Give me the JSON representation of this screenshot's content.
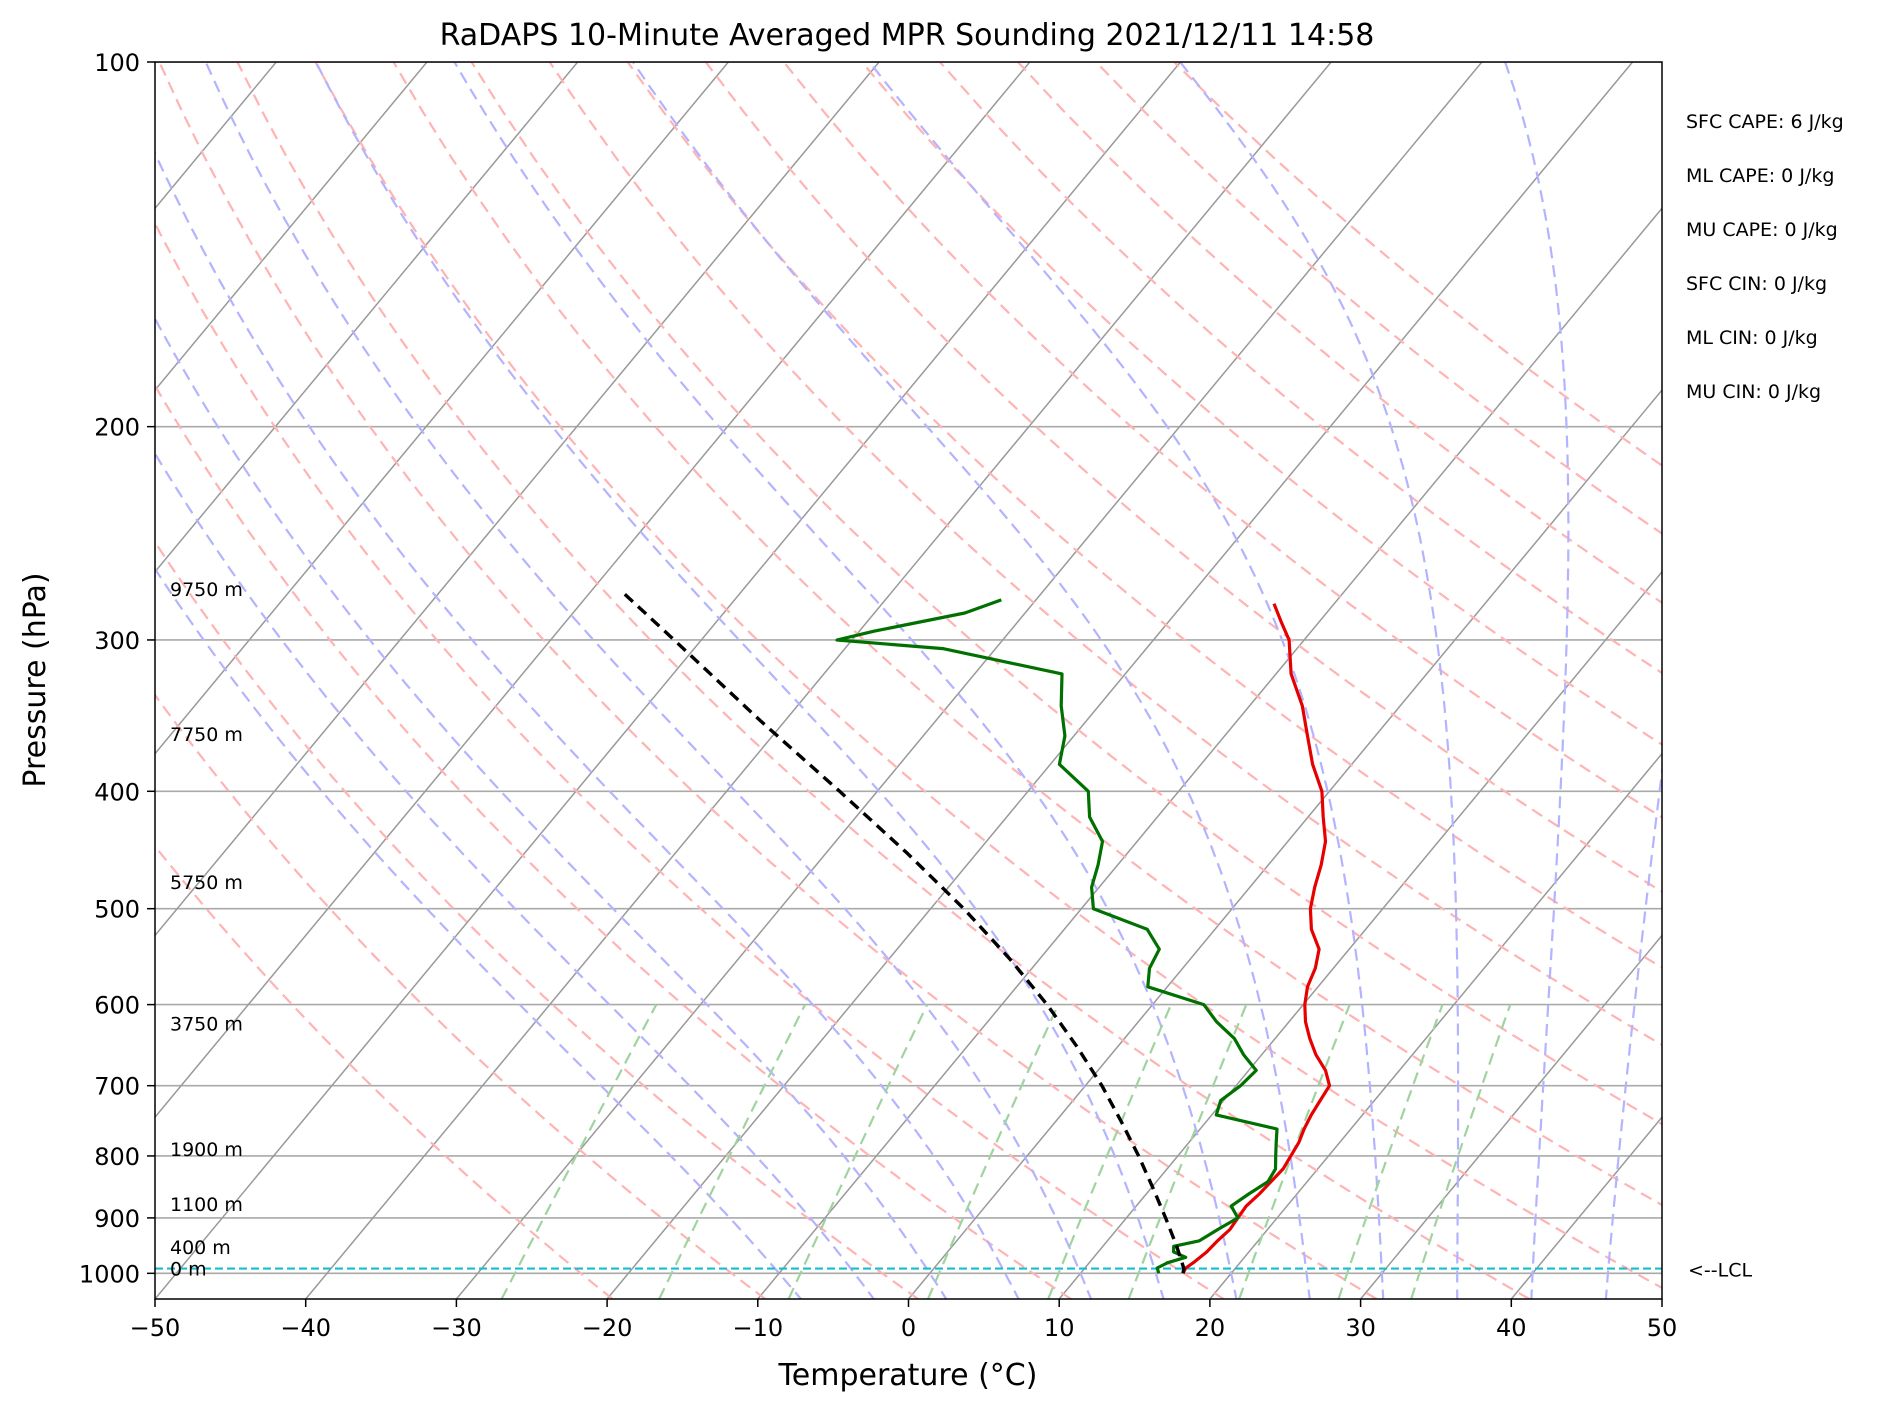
{
  "chart_data": {
    "type": "line",
    "title": "RaDAPS 10-Minute Averaged MPR Sounding 2021/12/11 14:58",
    "xlabel": "Temperature (°C)",
    "ylabel": "Pressure (hPa)",
    "xlim": [
      -50,
      50
    ],
    "ylim": [
      1050,
      100
    ],
    "y_scale": "log",
    "x_ticks": [
      "−50",
      "−40",
      "−30",
      "−20",
      "−10",
      "0",
      "10",
      "20",
      "30",
      "40",
      "50"
    ],
    "y_ticks": [
      "100",
      "200",
      "300",
      "400",
      "500",
      "600",
      "700",
      "800",
      "900",
      "1000"
    ],
    "height_labels": [
      {
        "text": "9750 m",
        "p": 275
      },
      {
        "text": "7750 m",
        "p": 362
      },
      {
        "text": "5750 m",
        "p": 480
      },
      {
        "text": "3750 m",
        "p": 628
      },
      {
        "text": "1900 m",
        "p": 797
      },
      {
        "text": "1100 m",
        "p": 885
      },
      {
        "text": "400 m",
        "p": 960
      },
      {
        "text": "0 m",
        "p": 1000
      }
    ],
    "indices": [
      "SFC CAPE: 6 J/kg",
      "ML CAPE: 0 J/kg",
      "MU CAPE: 0 J/kg",
      "SFC CIN: 0 J/kg",
      "ML CIN: 0 J/kg",
      "MU CIN: 0 J/kg"
    ],
    "lcl": {
      "label": "<--LCL",
      "p": 991
    },
    "series": [
      {
        "role": "temperature",
        "color": "#e60000",
        "points": [
          [
            1000,
            16.8
          ],
          [
            990,
            16.7
          ],
          [
            980,
            16.9
          ],
          [
            960,
            17.2
          ],
          [
            940,
            17.3
          ],
          [
            920,
            17.5
          ],
          [
            900,
            17.4
          ],
          [
            880,
            17.3
          ],
          [
            860,
            17.5
          ],
          [
            840,
            17.6
          ],
          [
            820,
            17.7
          ],
          [
            800,
            17.5
          ],
          [
            780,
            17.3
          ],
          [
            760,
            16.9
          ],
          [
            740,
            16.6
          ],
          [
            720,
            16.4
          ],
          [
            700,
            16.2
          ],
          [
            680,
            15.1
          ],
          [
            660,
            13.6
          ],
          [
            640,
            12.3
          ],
          [
            620,
            11.1
          ],
          [
            600,
            10.1
          ],
          [
            580,
            9.3
          ],
          [
            560,
            8.8
          ],
          [
            540,
            8.0
          ],
          [
            520,
            6.4
          ],
          [
            500,
            5.2
          ],
          [
            480,
            4.3
          ],
          [
            460,
            3.5
          ],
          [
            440,
            2.5
          ],
          [
            420,
            1.0
          ],
          [
            400,
            -0.5
          ],
          [
            380,
            -2.6
          ],
          [
            360,
            -4.5
          ],
          [
            340,
            -6.5
          ],
          [
            320,
            -9.0
          ],
          [
            300,
            -11.0
          ],
          [
            290,
            -12.5
          ],
          [
            280,
            -14.0
          ]
        ]
      },
      {
        "role": "dewpoint",
        "color": "#007000",
        "points": [
          [
            1000,
            15.2
          ],
          [
            990,
            14.8
          ],
          [
            980,
            15.2
          ],
          [
            970,
            16.1
          ],
          [
            960,
            15.0
          ],
          [
            950,
            14.7
          ],
          [
            940,
            16.1
          ],
          [
            920,
            16.7
          ],
          [
            900,
            17.4
          ],
          [
            880,
            16.3
          ],
          [
            860,
            16.8
          ],
          [
            840,
            17.4
          ],
          [
            820,
            17.2
          ],
          [
            800,
            16.5
          ],
          [
            780,
            15.8
          ],
          [
            760,
            15.1
          ],
          [
            740,
            10.3
          ],
          [
            720,
            9.8
          ],
          [
            700,
            10.3
          ],
          [
            680,
            10.5
          ],
          [
            660,
            8.8
          ],
          [
            640,
            7.3
          ],
          [
            620,
            5.2
          ],
          [
            600,
            3.4
          ],
          [
            580,
            -1.3
          ],
          [
            560,
            -2.2
          ],
          [
            540,
            -2.6
          ],
          [
            520,
            -4.5
          ],
          [
            500,
            -9.2
          ],
          [
            480,
            -10.5
          ],
          [
            460,
            -11.3
          ],
          [
            440,
            -12.3
          ],
          [
            420,
            -14.5
          ],
          [
            400,
            -16.0
          ],
          [
            380,
            -19.4
          ],
          [
            360,
            -20.6
          ],
          [
            340,
            -22.5
          ],
          [
            320,
            -24.2
          ],
          [
            305,
            -33.5
          ],
          [
            300,
            -41.0
          ],
          [
            295,
            -39.0
          ],
          [
            285,
            -34.0
          ],
          [
            278,
            -32.3
          ]
        ]
      },
      {
        "role": "parcel",
        "color": "#000000",
        "points": [
          [
            1000,
            16.8
          ],
          [
            991,
            16.6
          ],
          [
            950,
            14.9
          ],
          [
            900,
            12.6
          ],
          [
            850,
            10.1
          ],
          [
            800,
            7.4
          ],
          [
            750,
            4.4
          ],
          [
            700,
            1.1
          ],
          [
            650,
            -2.7
          ],
          [
            600,
            -7.0
          ],
          [
            550,
            -12.0
          ],
          [
            500,
            -17.8
          ],
          [
            450,
            -24.6
          ],
          [
            400,
            -32.5
          ],
          [
            350,
            -41.6
          ],
          [
            300,
            -51.8
          ],
          [
            275,
            -57.6
          ]
        ]
      }
    ],
    "reference_lines": {
      "isotherms": {
        "color": "#999999",
        "values_c": [
          -200,
          -190,
          -180,
          -170,
          -160,
          -150,
          -140,
          -130,
          -120,
          -110,
          -100,
          -90,
          -80,
          -70,
          -60,
          -50,
          -40,
          -30,
          -20,
          -10,
          0,
          10,
          20,
          30,
          40,
          50
        ]
      },
      "dry_adiabats": {
        "color": "#ffb3b3",
        "thetas_k": [
          250,
          260,
          270,
          280,
          290,
          300,
          310,
          320,
          330,
          340,
          350,
          360,
          370,
          380,
          390,
          400,
          410,
          420,
          430
        ]
      },
      "moist_adiabats": {
        "color": "#b3b3ff",
        "t0_c": [
          -10,
          -5,
          0,
          5,
          10,
          15,
          20,
          25,
          30,
          35,
          40,
          45
        ]
      },
      "mixing_ratio": {
        "color": "#9fd39f",
        "values_gkg": [
          0.4,
          1,
          2,
          4,
          7,
          10,
          16,
          24,
          32
        ]
      }
    }
  }
}
